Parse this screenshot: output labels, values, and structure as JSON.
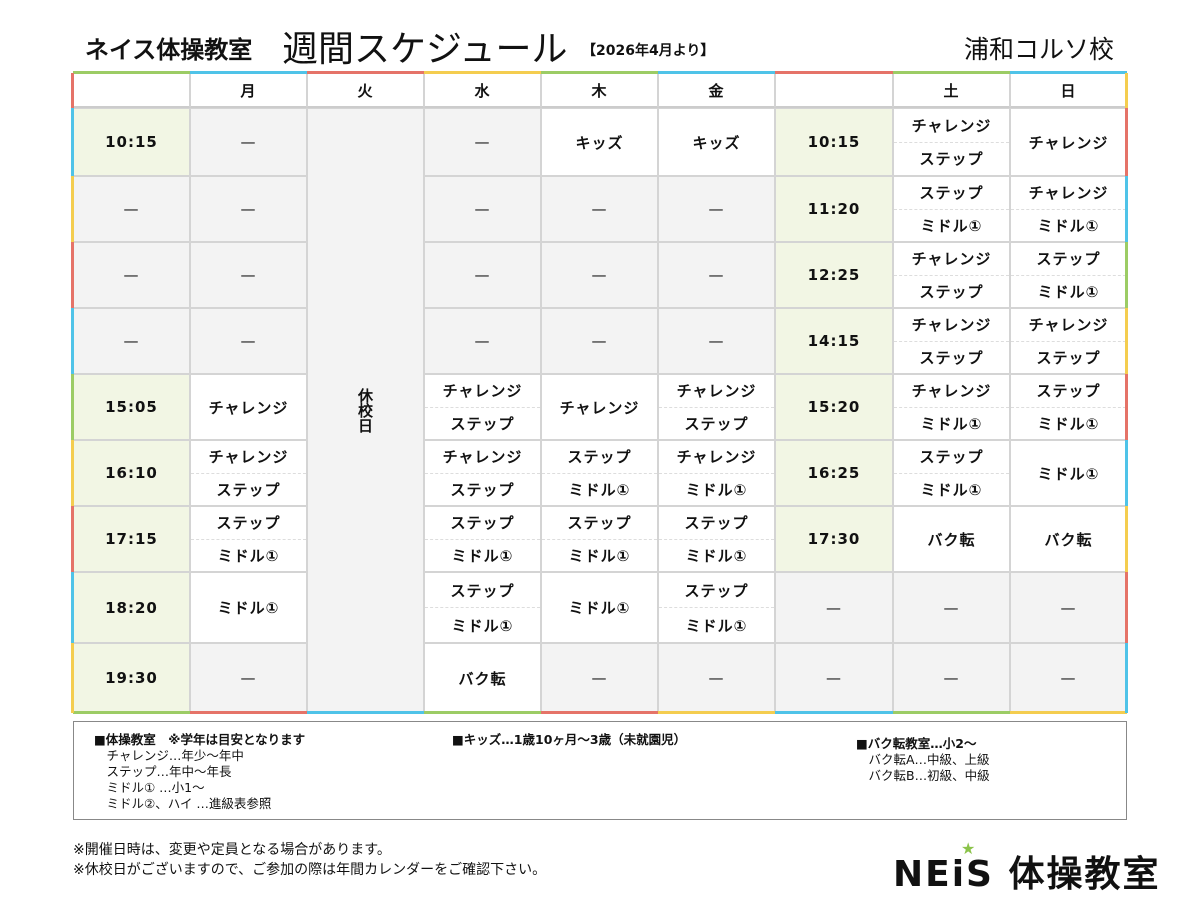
{
  "header": {
    "school": "ネイス体操教室",
    "title": "週間スケジュール",
    "from": "【2026年4月より】",
    "branch": "浦和コルソ校"
  },
  "table": {
    "days_left": [
      "",
      "月",
      "火",
      "水",
      "木",
      "金"
    ],
    "days_right": [
      "",
      "土",
      "日"
    ],
    "closed_day_label": "休校日",
    "left_rows": [
      [
        [
          "10:15"
        ],
        [
          "—"
        ],
        [
          "—"
        ],
        [
          "キッズ"
        ],
        [
          "キッズ"
        ]
      ],
      [
        [
          "—"
        ],
        [
          "—"
        ],
        [
          "—"
        ],
        [
          "—"
        ],
        [
          "—"
        ]
      ],
      [
        [
          "—"
        ],
        [
          "—"
        ],
        [
          "—"
        ],
        [
          "—"
        ],
        [
          "—"
        ]
      ],
      [
        [
          "—"
        ],
        [
          "—"
        ],
        [
          "—"
        ],
        [
          "—"
        ],
        [
          "—"
        ]
      ],
      [
        [
          "15:05"
        ],
        [
          "チャレンジ"
        ],
        [
          "チャレンジ",
          "ステップ"
        ],
        [
          "チャレンジ"
        ],
        [
          "チャレンジ",
          "ステップ"
        ]
      ],
      [
        [
          "16:10"
        ],
        [
          "チャレンジ",
          "ステップ"
        ],
        [
          "チャレンジ",
          "ステップ"
        ],
        [
          "ステップ",
          "ミドル①"
        ],
        [
          "チャレンジ",
          "ミドル①"
        ]
      ],
      [
        [
          "17:15"
        ],
        [
          "ステップ",
          "ミドル①"
        ],
        [
          "ステップ",
          "ミドル①"
        ],
        [
          "ステップ",
          "ミドル①"
        ],
        [
          "ステップ",
          "ミドル①"
        ]
      ],
      [
        [
          "18:20"
        ],
        [
          "ミドル①"
        ],
        [
          "ステップ",
          "ミドル①"
        ],
        [
          "ミドル①"
        ],
        [
          "ステップ",
          "ミドル①"
        ]
      ],
      [
        [
          "19:30"
        ],
        [
          "—"
        ],
        [
          "バク転"
        ],
        [
          "—"
        ],
        [
          "—"
        ]
      ]
    ],
    "right_rows": [
      [
        [
          "10:15"
        ],
        [
          "チャレンジ",
          "ステップ"
        ],
        [
          "チャレンジ"
        ]
      ],
      [
        [
          "11:20"
        ],
        [
          "ステップ",
          "ミドル①"
        ],
        [
          "チャレンジ",
          "ミドル①"
        ]
      ],
      [
        [
          "12:25"
        ],
        [
          "チャレンジ",
          "ステップ"
        ],
        [
          "ステップ",
          "ミドル①"
        ]
      ],
      [
        [
          "14:15"
        ],
        [
          "チャレンジ",
          "ステップ"
        ],
        [
          "チャレンジ",
          "ステップ"
        ]
      ],
      [
        [
          "15:20"
        ],
        [
          "チャレンジ",
          "ミドル①"
        ],
        [
          "ステップ",
          "ミドル①"
        ]
      ],
      [
        [
          "16:25"
        ],
        [
          "ステップ",
          "ミドル①"
        ],
        [
          "ミドル①"
        ]
      ],
      [
        [
          "17:30"
        ],
        [
          "バク転"
        ],
        [
          "バク転"
        ]
      ],
      [
        [
          "—"
        ],
        [
          "—"
        ],
        [
          "—"
        ]
      ],
      [
        [
          "—"
        ],
        [
          "—"
        ],
        [
          "—"
        ]
      ]
    ]
  },
  "legend": {
    "col1": [
      "■体操教室　※学年は目安となります",
      "　チャレンジ…年少～年中",
      "　ステップ…年中～年長",
      "　ミドル① …小1～",
      "　ミドル②、ハイ …進級表参照"
    ],
    "col2": [
      "■キッズ…1歳10ヶ月～3歳（未就園児）"
    ],
    "col3": [
      "■バク転教室…小2～",
      "　バク転A…中級、上級",
      "　バク転B…初級、中級"
    ]
  },
  "notes": [
    "※開催日時は、変更や定員となる場合があります。",
    "※休校日がございますので、ご参加の際は年間カレンダーをご確認下さい。"
  ],
  "logo": {
    "text": "NEiS 体操教室"
  },
  "colors": {
    "green": "#f2f6e4",
    "gray": "#f3f3f3",
    "accents": [
      "#e57368",
      "#4fc3e8",
      "#f4cd4f",
      "#9ccc65"
    ]
  }
}
